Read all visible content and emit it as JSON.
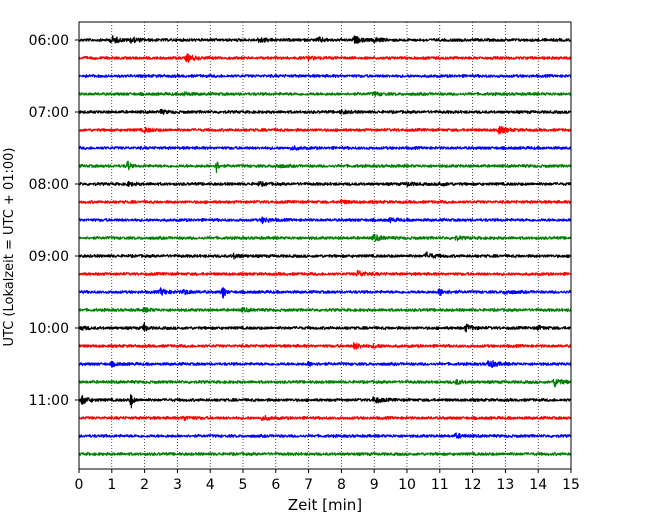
{
  "chart_data": {
    "type": "line",
    "title": "",
    "xlabel": "Zeit  [min]",
    "ylabel": "UTC (Lokalzeit = UTC + 01:00)",
    "xlim": [
      0,
      15
    ],
    "x_ticks": [
      0,
      1,
      2,
      3,
      4,
      5,
      6,
      7,
      8,
      9,
      10,
      11,
      12,
      13,
      14,
      15
    ],
    "x_tick_labels": [
      "0",
      "1",
      "2",
      "3",
      "4",
      "5",
      "6",
      "7",
      "8",
      "9",
      "10",
      "11",
      "12",
      "13",
      "14",
      "15"
    ],
    "grid": "vertical dotted lines at each minute",
    "trace_interval_min": 15,
    "trace_color_cycle": [
      "#000000",
      "#ff0000",
      "#0000ff",
      "#008000"
    ],
    "y_tick_labels": [
      "06:00",
      "07:00",
      "08:00",
      "09:00",
      "10:00",
      "11:00"
    ],
    "series": [
      {
        "start": "06:00",
        "events": [
          [
            1.0,
            3.5
          ],
          [
            1.6,
            2.5
          ],
          [
            5.5,
            2.5
          ],
          [
            7.3,
            2.0
          ],
          [
            8.4,
            3.0
          ],
          [
            9.0,
            2.0
          ]
        ]
      },
      {
        "start": "06:15",
        "events": [
          [
            3.3,
            3.5
          ],
          [
            7.0,
            1.5
          ]
        ]
      },
      {
        "start": "06:30",
        "events": []
      },
      {
        "start": "06:45",
        "events": [
          [
            3.2,
            1.5
          ],
          [
            9.0,
            1.5
          ]
        ]
      },
      {
        "start": "07:00",
        "events": [
          [
            2.5,
            1.5
          ],
          [
            8.0,
            1.5
          ]
        ]
      },
      {
        "start": "07:15",
        "events": [
          [
            2.0,
            2.0
          ],
          [
            12.8,
            3.5
          ]
        ]
      },
      {
        "start": "07:30",
        "events": [
          [
            6.5,
            1.5
          ]
        ]
      },
      {
        "start": "07:45",
        "events": [
          [
            1.5,
            5.5
          ],
          [
            4.2,
            6.0
          ],
          [
            6.0,
            1.5
          ]
        ]
      },
      {
        "start": "08:00",
        "events": [
          [
            1.5,
            1.5
          ],
          [
            5.5,
            1.5
          ],
          [
            10.0,
            1.5
          ],
          [
            11.0,
            1.5
          ]
        ]
      },
      {
        "start": "08:15",
        "events": [
          [
            8.0,
            1.5
          ]
        ]
      },
      {
        "start": "08:30",
        "events": [
          [
            5.6,
            2.5
          ],
          [
            9.5,
            1.5
          ]
        ]
      },
      {
        "start": "08:45",
        "events": [
          [
            9.0,
            3.0
          ],
          [
            11.5,
            1.5
          ]
        ]
      },
      {
        "start": "09:00",
        "events": [
          [
            4.7,
            2.0
          ],
          [
            10.6,
            3.0
          ]
        ]
      },
      {
        "start": "09:15",
        "events": [
          [
            8.5,
            3.0
          ]
        ]
      },
      {
        "start": "09:30",
        "events": [
          [
            2.5,
            3.0
          ],
          [
            3.2,
            2.0
          ],
          [
            4.4,
            7.0
          ],
          [
            11.0,
            3.0
          ],
          [
            13.0,
            2.0
          ]
        ]
      },
      {
        "start": "09:45",
        "events": [
          [
            2.0,
            1.5
          ],
          [
            5.0,
            1.5
          ]
        ]
      },
      {
        "start": "10:00",
        "events": [
          [
            0.0,
            2.0
          ],
          [
            2.0,
            5.5
          ],
          [
            11.8,
            3.0
          ],
          [
            14.0,
            1.5
          ]
        ]
      },
      {
        "start": "10:15",
        "events": [
          [
            8.4,
            3.0
          ],
          [
            9.0,
            1.5
          ]
        ]
      },
      {
        "start": "10:30",
        "events": [
          [
            1.0,
            1.5
          ],
          [
            7.0,
            1.5
          ],
          [
            12.5,
            4.0
          ]
        ]
      },
      {
        "start": "10:45",
        "events": [
          [
            11.5,
            2.0
          ],
          [
            14.5,
            4.0
          ]
        ]
      },
      {
        "start": "11:00",
        "events": [
          [
            0.1,
            3.5
          ],
          [
            1.6,
            7.0
          ],
          [
            9.0,
            3.0
          ]
        ]
      },
      {
        "start": "11:15",
        "events": [
          [
            3.2,
            2.0
          ],
          [
            5.6,
            2.0
          ]
        ]
      },
      {
        "start": "11:30",
        "events": [
          [
            11.5,
            2.0
          ]
        ]
      },
      {
        "start": "11:45",
        "events": []
      }
    ]
  }
}
